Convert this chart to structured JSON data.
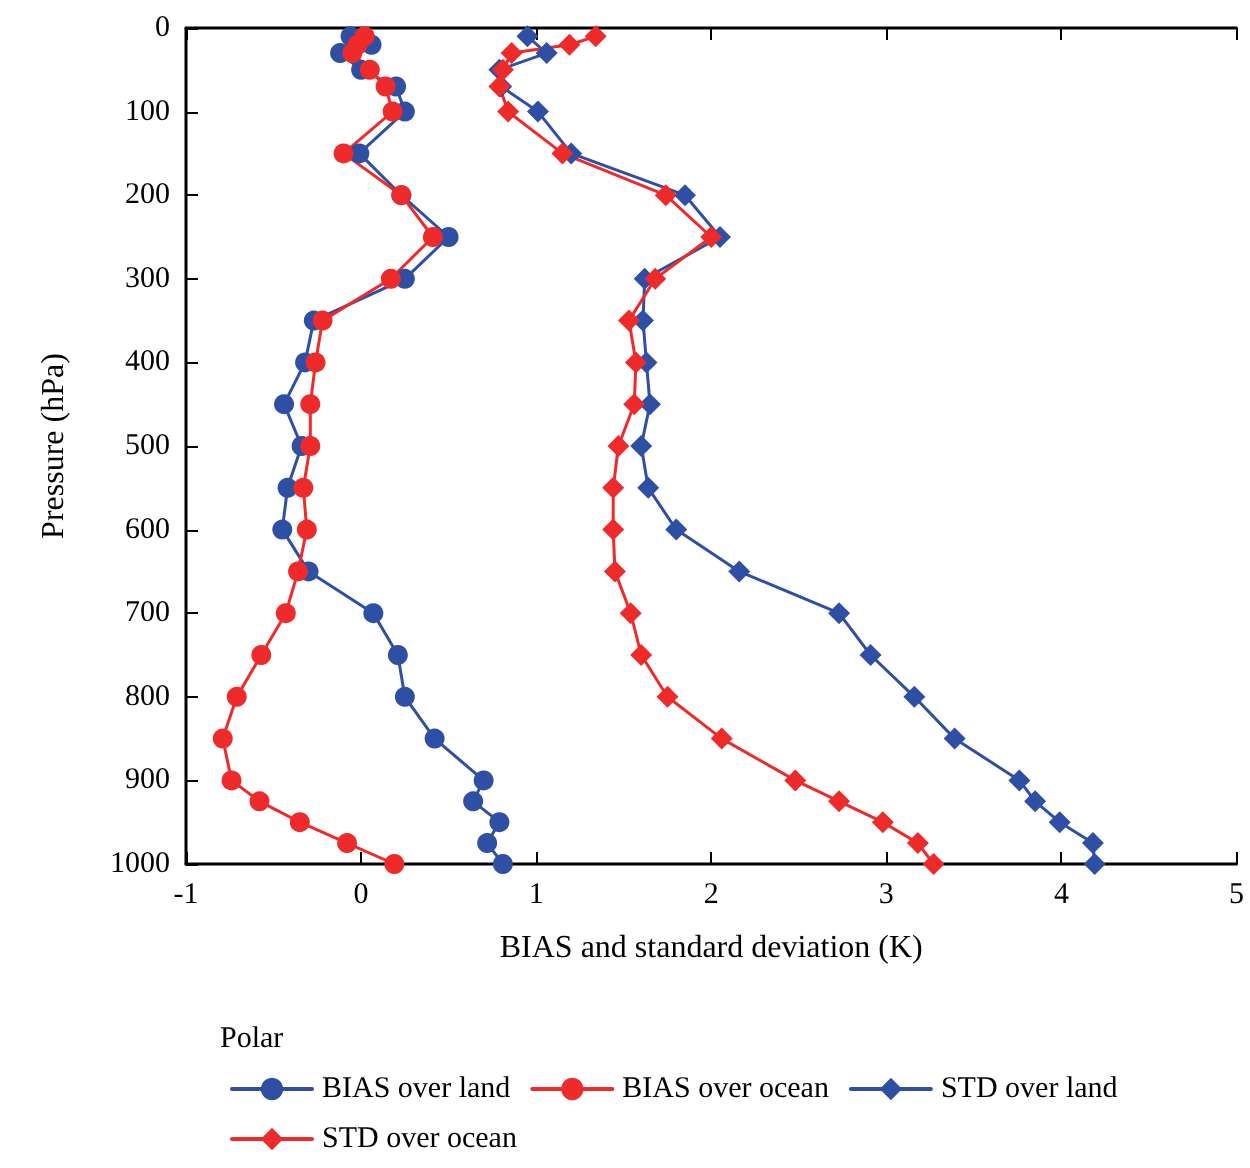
{
  "chart_data": {
    "type": "line",
    "xlabel": "BIAS and standard deviation (K)",
    "ylabel": "Pressure (hPa)",
    "legend_title": "Polar",
    "legend": "bottom",
    "xlim": [
      -1,
      5
    ],
    "xticks": [
      -1,
      0,
      1,
      2,
      3,
      4,
      5
    ],
    "ylim": [
      1000,
      0
    ],
    "yticks": [
      0,
      100,
      200,
      300,
      400,
      500,
      600,
      700,
      800,
      900,
      1000
    ],
    "grid": false,
    "line_style": "solid",
    "series": [
      {
        "name": "BIAS over land",
        "color": "#2e4fa3",
        "marker": "circle",
        "x": [
          -0.06,
          0.06,
          -0.12,
          0.0,
          0.2,
          0.25,
          -0.01,
          0.23,
          0.5,
          0.25,
          -0.27,
          -0.32,
          -0.44,
          -0.34,
          -0.42,
          -0.45,
          -0.3,
          0.07,
          0.21,
          0.25,
          0.42,
          0.7,
          0.64,
          0.79,
          0.72,
          0.81
        ],
        "values": [
          10,
          20,
          30,
          50,
          70,
          100,
          150,
          200,
          250,
          300,
          350,
          400,
          450,
          500,
          550,
          600,
          650,
          700,
          750,
          800,
          850,
          900,
          925,
          950,
          975,
          1000
        ]
      },
      {
        "name": "BIAS over ocean",
        "color": "#ee2a2b",
        "marker": "circle",
        "x": [
          0.02,
          -0.02,
          -0.05,
          0.05,
          0.14,
          0.18,
          -0.1,
          0.23,
          0.41,
          0.17,
          -0.22,
          -0.26,
          -0.29,
          -0.29,
          -0.33,
          -0.31,
          -0.36,
          -0.43,
          -0.57,
          -0.71,
          -0.79,
          -0.74,
          -0.58,
          -0.35,
          -0.08,
          0.19
        ],
        "values": [
          10,
          20,
          30,
          50,
          70,
          100,
          150,
          200,
          250,
          300,
          350,
          400,
          450,
          500,
          550,
          600,
          650,
          700,
          750,
          800,
          850,
          900,
          925,
          950,
          975,
          1000
        ]
      },
      {
        "name": "STD over land",
        "color": "#2e4fa3",
        "marker": "diamond",
        "x": [
          0.95,
          1.06,
          0.79,
          0.8,
          1.01,
          1.2,
          1.85,
          2.05,
          1.62,
          1.61,
          1.63,
          1.65,
          1.6,
          1.64,
          1.8,
          2.16,
          2.73,
          2.91,
          3.16,
          3.39,
          3.76,
          3.85,
          3.99,
          4.18,
          4.19
        ],
        "values": [
          10,
          30,
          50,
          70,
          100,
          150,
          200,
          250,
          300,
          350,
          400,
          450,
          500,
          550,
          600,
          650,
          700,
          750,
          800,
          850,
          900,
          925,
          950,
          975,
          1000
        ]
      },
      {
        "name": "STD over ocean",
        "color": "#ee2a2b",
        "marker": "diamond",
        "x": [
          1.34,
          1.19,
          0.86,
          0.81,
          0.79,
          0.84,
          1.15,
          1.74,
          2.0,
          1.68,
          1.53,
          1.57,
          1.56,
          1.47,
          1.44,
          1.44,
          1.45,
          1.54,
          1.6,
          1.75,
          2.06,
          2.48,
          2.73,
          2.98,
          3.18,
          3.27
        ],
        "values": [
          10,
          20,
          30,
          50,
          70,
          100,
          150,
          200,
          250,
          300,
          350,
          400,
          450,
          500,
          550,
          600,
          650,
          700,
          750,
          800,
          850,
          900,
          925,
          950,
          975,
          1000
        ]
      }
    ]
  }
}
